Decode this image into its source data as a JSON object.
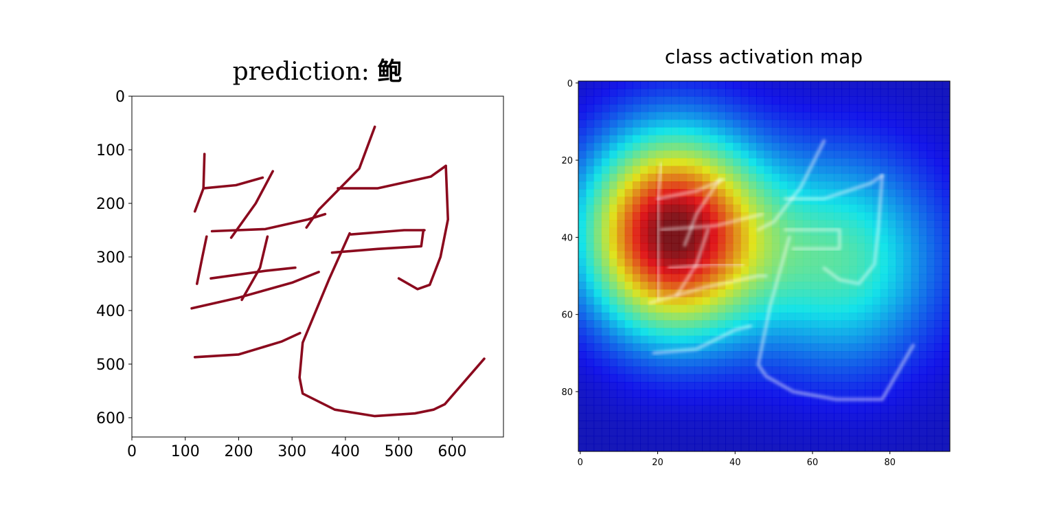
{
  "chart_data": [
    {
      "type": "image",
      "title_prefix": "prediction: ",
      "title_char": "鲍",
      "x_ticks": [
        0,
        100,
        200,
        300,
        400,
        500,
        600
      ],
      "y_ticks": [
        0,
        100,
        200,
        300,
        400,
        500,
        600
      ],
      "xlim": [
        0,
        696
      ],
      "ylim": [
        636,
        0
      ],
      "stroke_color": "#8b0a1e",
      "strokes": [
        [
          [
            136,
            108
          ],
          [
            134,
            172
          ]
        ],
        [
          [
            134,
            172
          ],
          [
            195,
            166
          ],
          [
            245,
            152
          ]
        ],
        [
          [
            264,
            140
          ],
          [
            232,
            200
          ],
          [
            186,
            264
          ]
        ],
        [
          [
            134,
            172
          ],
          [
            118,
            215
          ]
        ],
        [
          [
            150,
            252
          ],
          [
            250,
            248
          ],
          [
            330,
            230
          ],
          [
            362,
            220
          ]
        ],
        [
          [
            140,
            262
          ],
          [
            132,
            300
          ],
          [
            122,
            350
          ]
        ],
        [
          [
            254,
            262
          ],
          [
            240,
            320
          ],
          [
            206,
            380
          ]
        ],
        [
          [
            148,
            340
          ],
          [
            250,
            326
          ],
          [
            306,
            320
          ]
        ],
        [
          [
            112,
            396
          ],
          [
            200,
            376
          ],
          [
            300,
            348
          ],
          [
            350,
            328
          ]
        ],
        [
          [
            455,
            57
          ],
          [
            426,
            135
          ],
          [
            350,
            212
          ],
          [
            327,
            245
          ]
        ],
        [
          [
            386,
            172
          ],
          [
            460,
            172
          ],
          [
            560,
            150
          ],
          [
            588,
            130
          ]
        ],
        [
          [
            588,
            130
          ],
          [
            592,
            230
          ],
          [
            578,
            300
          ],
          [
            558,
            352
          ],
          [
            535,
            360
          ],
          [
            500,
            340
          ]
        ],
        [
          [
            410,
            258
          ],
          [
            510,
            250
          ],
          [
            548,
            250
          ]
        ],
        [
          [
            546,
            250
          ],
          [
            542,
            280
          ],
          [
            460,
            285
          ],
          [
            375,
            292
          ]
        ],
        [
          [
            408,
            256
          ],
          [
            370,
            340
          ],
          [
            320,
            460
          ],
          [
            314,
            525
          ],
          [
            320,
            555
          ],
          [
            380,
            585
          ],
          [
            455,
            597
          ],
          [
            530,
            592
          ],
          [
            565,
            585
          ],
          [
            586,
            575
          ],
          [
            660,
            490
          ]
        ],
        [
          [
            118,
            487
          ],
          [
            200,
            482
          ],
          [
            280,
            458
          ],
          [
            315,
            442
          ]
        ]
      ]
    },
    {
      "type": "heatmap",
      "title": "class activation map",
      "x_ticks": [
        0,
        20,
        40,
        60,
        80
      ],
      "y_ticks": [
        0,
        20,
        40,
        60,
        80
      ],
      "xlim": [
        -0.5,
        95.5
      ],
      "ylim": [
        95.5,
        -0.5
      ],
      "colormap": "jet",
      "hotspots": [
        {
          "x": 24,
          "y": 39,
          "sx": 16,
          "sy": 18,
          "amp": 1.0
        },
        {
          "x": 68,
          "y": 46,
          "sx": 18,
          "sy": 20,
          "amp": 0.4
        }
      ],
      "overlay_strokes": [
        [
          [
            21,
            21
          ],
          [
            20,
            30
          ],
          [
            20,
            56
          ]
        ],
        [
          [
            20,
            30
          ],
          [
            30,
            28
          ],
          [
            37,
            25
          ]
        ],
        [
          [
            36,
            25
          ],
          [
            30,
            34
          ],
          [
            27,
            42
          ]
        ],
        [
          [
            21,
            38
          ],
          [
            35,
            37
          ],
          [
            47,
            34
          ]
        ],
        [
          [
            33,
            38
          ],
          [
            30,
            47
          ],
          [
            25,
            55
          ]
        ],
        [
          [
            23,
            48
          ],
          [
            34,
            47
          ],
          [
            42,
            47
          ]
        ],
        [
          [
            18,
            57
          ],
          [
            32,
            53
          ],
          [
            46,
            50
          ],
          [
            48,
            50
          ]
        ],
        [
          [
            63,
            15
          ],
          [
            57,
            27
          ],
          [
            50,
            36
          ],
          [
            46,
            38
          ]
        ],
        [
          [
            53,
            30
          ],
          [
            63,
            30
          ],
          [
            75,
            26
          ],
          [
            78,
            24
          ]
        ],
        [
          [
            78,
            24
          ],
          [
            77,
            38
          ],
          [
            76,
            47
          ],
          [
            72,
            52
          ],
          [
            67,
            51
          ],
          [
            63,
            48
          ]
        ],
        [
          [
            53,
            38
          ],
          [
            67,
            38
          ],
          [
            67,
            43
          ],
          [
            55,
            43
          ]
        ],
        [
          [
            54,
            40
          ],
          [
            49,
            58
          ],
          [
            46,
            73
          ],
          [
            48,
            76
          ],
          [
            55,
            80
          ],
          [
            66,
            82
          ],
          [
            78,
            82
          ],
          [
            86,
            68
          ]
        ],
        [
          [
            19,
            70
          ],
          [
            30,
            69
          ],
          [
            40,
            64
          ],
          [
            44,
            63
          ]
        ]
      ]
    }
  ]
}
